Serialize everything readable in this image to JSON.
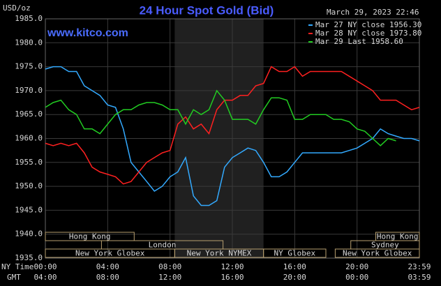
{
  "chart_data": {
    "type": "line",
    "title": "24 Hour Spot Gold (Bid)",
    "y_label": "USD/oz",
    "timestamp": "March 29, 2023 22:46",
    "watermark": "www.kitco.com",
    "x_label": "NY Time",
    "x2_label": "GMT",
    "xlim": [
      0,
      24
    ],
    "ylim": [
      1935,
      1985
    ],
    "yticks": [
      {
        "value": 1935,
        "label": "1935.0"
      },
      {
        "value": 1940,
        "label": "1940.0"
      },
      {
        "value": 1945,
        "label": "1945.0"
      },
      {
        "value": 1950,
        "label": "1950.0"
      },
      {
        "value": 1955,
        "label": "1955.0"
      },
      {
        "value": 1960,
        "label": "1960.0"
      },
      {
        "value": 1965,
        "label": "1965.0"
      },
      {
        "value": 1970,
        "label": "1970.0"
      },
      {
        "value": 1975,
        "label": "1975.0"
      },
      {
        "value": 1980,
        "label": "1980.0"
      },
      {
        "value": 1985,
        "label": "1985.0"
      }
    ],
    "xticks": [
      {
        "value": 0,
        "label": "00:00"
      },
      {
        "value": 4,
        "label": "04:00"
      },
      {
        "value": 8,
        "label": "08:00"
      },
      {
        "value": 12,
        "label": "12:00"
      },
      {
        "value": 16,
        "label": "16:00"
      },
      {
        "value": 20,
        "label": "20:00"
      },
      {
        "value": 24,
        "label": "23:59"
      }
    ],
    "x2ticks": [
      {
        "value": 0,
        "label": "04:00"
      },
      {
        "value": 4,
        "label": "08:00"
      },
      {
        "value": 8,
        "label": "12:00"
      },
      {
        "value": 12,
        "label": "16:00"
      },
      {
        "value": 16,
        "label": "20:00"
      },
      {
        "value": 20,
        "label": "00:00"
      },
      {
        "value": 24,
        "label": "03:59"
      }
    ],
    "grid": true,
    "sessions": [
      {
        "label": "Hong Kong",
        "start": 0,
        "end": 5.7
      },
      {
        "label": "London",
        "start": 3.6,
        "end": 11.4
      },
      {
        "label": "New York Globex",
        "start": 0,
        "end": 8.3
      },
      {
        "label": "New York NYMEX",
        "start": 8.3,
        "end": 14
      },
      {
        "label": "NY Globex",
        "start": 14,
        "end": 18
      },
      {
        "label": "Hong Kong",
        "start": 21.2,
        "end": 24
      },
      {
        "label": "Sydney",
        "start": 19.6,
        "end": 24
      },
      {
        "label": "New York Globex",
        "start": 18.6,
        "end": 24
      }
    ],
    "x": [
      0,
      0.5,
      1,
      1.5,
      2,
      2.5,
      3,
      3.5,
      4,
      4.5,
      5,
      5.5,
      6,
      6.5,
      7,
      7.5,
      8,
      8.5,
      9,
      9.5,
      10,
      10.5,
      11,
      11.5,
      12,
      12.5,
      13,
      13.5,
      14,
      14.5,
      15,
      15.5,
      16,
      16.5,
      17,
      17.5,
      18,
      18.5,
      19,
      19.5,
      20,
      20.5,
      21,
      21.5,
      22,
      22.5,
      23,
      23.5,
      24
    ],
    "series": [
      {
        "name": "Mar 27 NY close 1956.30",
        "color": "#33aaff",
        "values": [
          1974.5,
          1975,
          1975,
          1974,
          1974,
          1971,
          1970,
          1969,
          1967,
          1966.5,
          1962,
          1955,
          1953,
          1951,
          1949,
          1950,
          1952,
          1953,
          1956,
          1948,
          1946,
          1946,
          1947,
          1954,
          1956,
          1957,
          1958,
          1957.5,
          1955,
          1952,
          1952,
          1953,
          1955,
          1957,
          1957,
          1957,
          1957,
          1957,
          1957,
          1957.5,
          1958,
          1959,
          1960,
          1962,
          1961,
          1960.5,
          1960,
          1960,
          1959.5
        ]
      },
      {
        "name": "Mar 28 NY close 1973.80",
        "color": "#ff2020",
        "values": [
          1959,
          1958.5,
          1959,
          1958.5,
          1959,
          1957,
          1954,
          1953,
          1952.5,
          1952,
          1950.5,
          1951,
          1953,
          1955,
          1956,
          1957,
          1957.5,
          1963,
          1964.5,
          1962,
          1963,
          1961,
          1966,
          1968,
          1968,
          1969,
          1969,
          1971,
          1971.5,
          1975,
          1974,
          1974,
          1975,
          1973,
          1974,
          1974,
          1974,
          1974,
          1974,
          1973,
          1972,
          1971,
          1970,
          1968,
          1968,
          1968,
          1967,
          1966,
          1966.5
        ]
      },
      {
        "name": "Mar 29 Last 1958.60",
        "color": "#22cc22",
        "values": [
          1966.5,
          1967.5,
          1968,
          1966,
          1965,
          1962,
          1962,
          1961,
          1963,
          1965,
          1966,
          1966,
          1967,
          1967.5,
          1967.5,
          1967,
          1966,
          1966,
          1963,
          1966,
          1965,
          1966,
          1970,
          1968,
          1964,
          1964,
          1964,
          1963,
          1966,
          1968.5,
          1968.5,
          1968,
          1964,
          1964,
          1965,
          1965,
          1965,
          1964,
          1964,
          1963.5,
          1962,
          1961.5,
          1960,
          1958.5,
          1960,
          1959.5,
          null,
          null,
          null
        ]
      }
    ]
  }
}
